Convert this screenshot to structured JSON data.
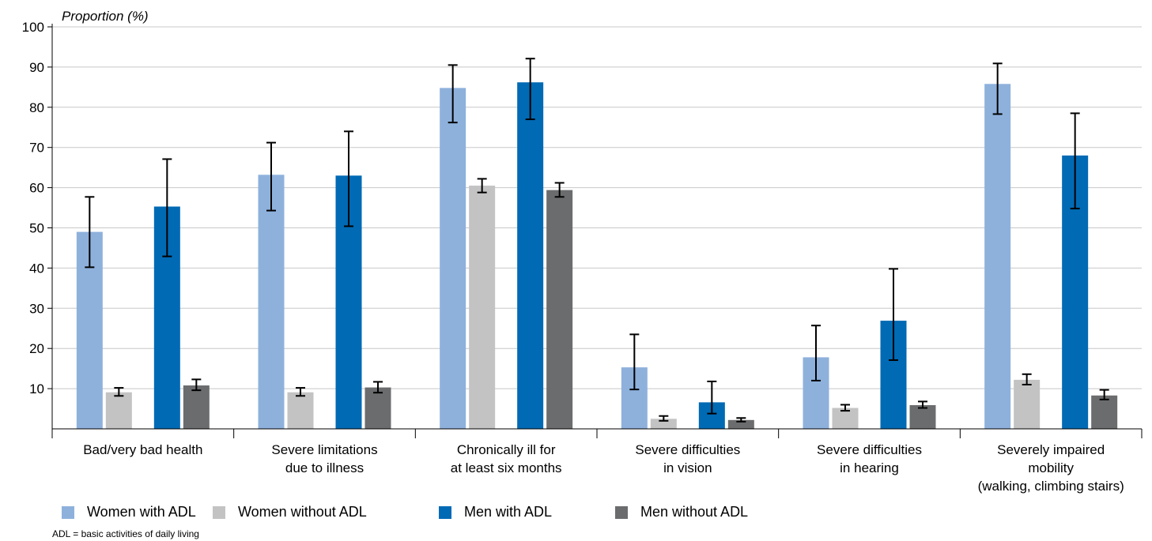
{
  "chart_data": {
    "type": "bar",
    "ylabel": "Proportion (%)",
    "ylim": [
      0,
      100
    ],
    "yticks": [
      10,
      20,
      30,
      40,
      50,
      60,
      70,
      80,
      90,
      100
    ],
    "grid": true,
    "categories": [
      "Bad/very bad health",
      "Severe limitations due to illness",
      "Chronically ill for at least six months",
      "Severe difficulties in vision",
      "Severe difficulties in hearing",
      "Severely impaired mobility (walking, climbing stairs)"
    ],
    "category_lines": [
      [
        "Bad/very bad health"
      ],
      [
        "Severe limitations",
        "due to illness"
      ],
      [
        "Chronically ill for",
        "at least six months"
      ],
      [
        "Severe difficulties",
        "in vision"
      ],
      [
        "Severe difficulties",
        "in hearing"
      ],
      [
        "Severely impaired",
        "mobility",
        "(walking, climbing stairs)"
      ]
    ],
    "series": [
      {
        "name": "Women with ADL",
        "color": "#8eb1dc",
        "values": [
          49,
          63.2,
          84.8,
          15.3,
          17.8,
          85.8
        ],
        "error_low": [
          40.2,
          54.3,
          76.2,
          9.8,
          12,
          78.3
        ],
        "error_high": [
          57.7,
          71.2,
          90.5,
          23.5,
          25.7,
          90.9
        ]
      },
      {
        "name": "Women without ADL",
        "color": "#c3c3c3",
        "values": [
          9.1,
          9.1,
          60.5,
          2.5,
          5.2,
          12.2
        ],
        "error_low": [
          8.2,
          8.2,
          58.8,
          2.0,
          4.5,
          11.0
        ],
        "error_high": [
          10.2,
          10.2,
          62.2,
          3.2,
          6.0,
          13.6
        ]
      },
      {
        "name": "Men with ADL",
        "color": "#006ab4",
        "values": [
          55.3,
          63,
          86.2,
          6.6,
          26.9,
          68
        ],
        "error_low": [
          42.9,
          50.4,
          77,
          3.8,
          17.1,
          54.8
        ],
        "error_high": [
          67.1,
          74,
          92.1,
          11.8,
          39.8,
          78.5
        ]
      },
      {
        "name": "Men without ADL",
        "color": "#6b6c6e",
        "values": [
          10.8,
          10.3,
          59.4,
          2.2,
          5.9,
          8.3
        ],
        "error_low": [
          9.6,
          9.0,
          57.7,
          1.8,
          5.2,
          7.3
        ],
        "error_high": [
          12.3,
          11.7,
          61.2,
          2.7,
          6.8,
          9.7
        ]
      }
    ]
  },
  "footnote": "ADL = basic activities of daily living"
}
